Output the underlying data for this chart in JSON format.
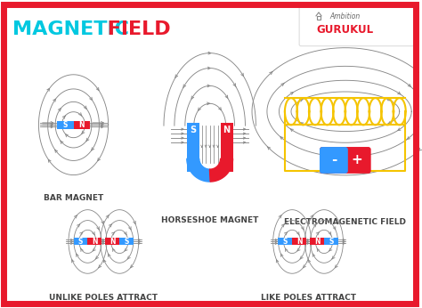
{
  "bg_color": "#ffffff",
  "border_color": "#e8192c",
  "title_color_magnetic": "#00c8e0",
  "title_color_field": "#e8192c",
  "title_fontsize": 16,
  "label_fontsize": 6.5,
  "label_color": "#444444",
  "south_color": "#3399ff",
  "north_color": "#e8192c",
  "field_line_color": "#888888",
  "coil_color": "#f5c400",
  "labels": {
    "bar_magnet": "BAR MAGNET",
    "horseshoe": "HORSESHOE MAGNET",
    "electromagnetic": "ELECTROMAGENETIC FIELD",
    "unlike": "UNLIKE POLES ATTRACT",
    "like": "LIKE POLES ATTRACT"
  },
  "logo_text1": "Ambition",
  "logo_text2": "GURUKUL",
  "logo_color": "#e8192c",
  "logo_bg": "#ffffff"
}
